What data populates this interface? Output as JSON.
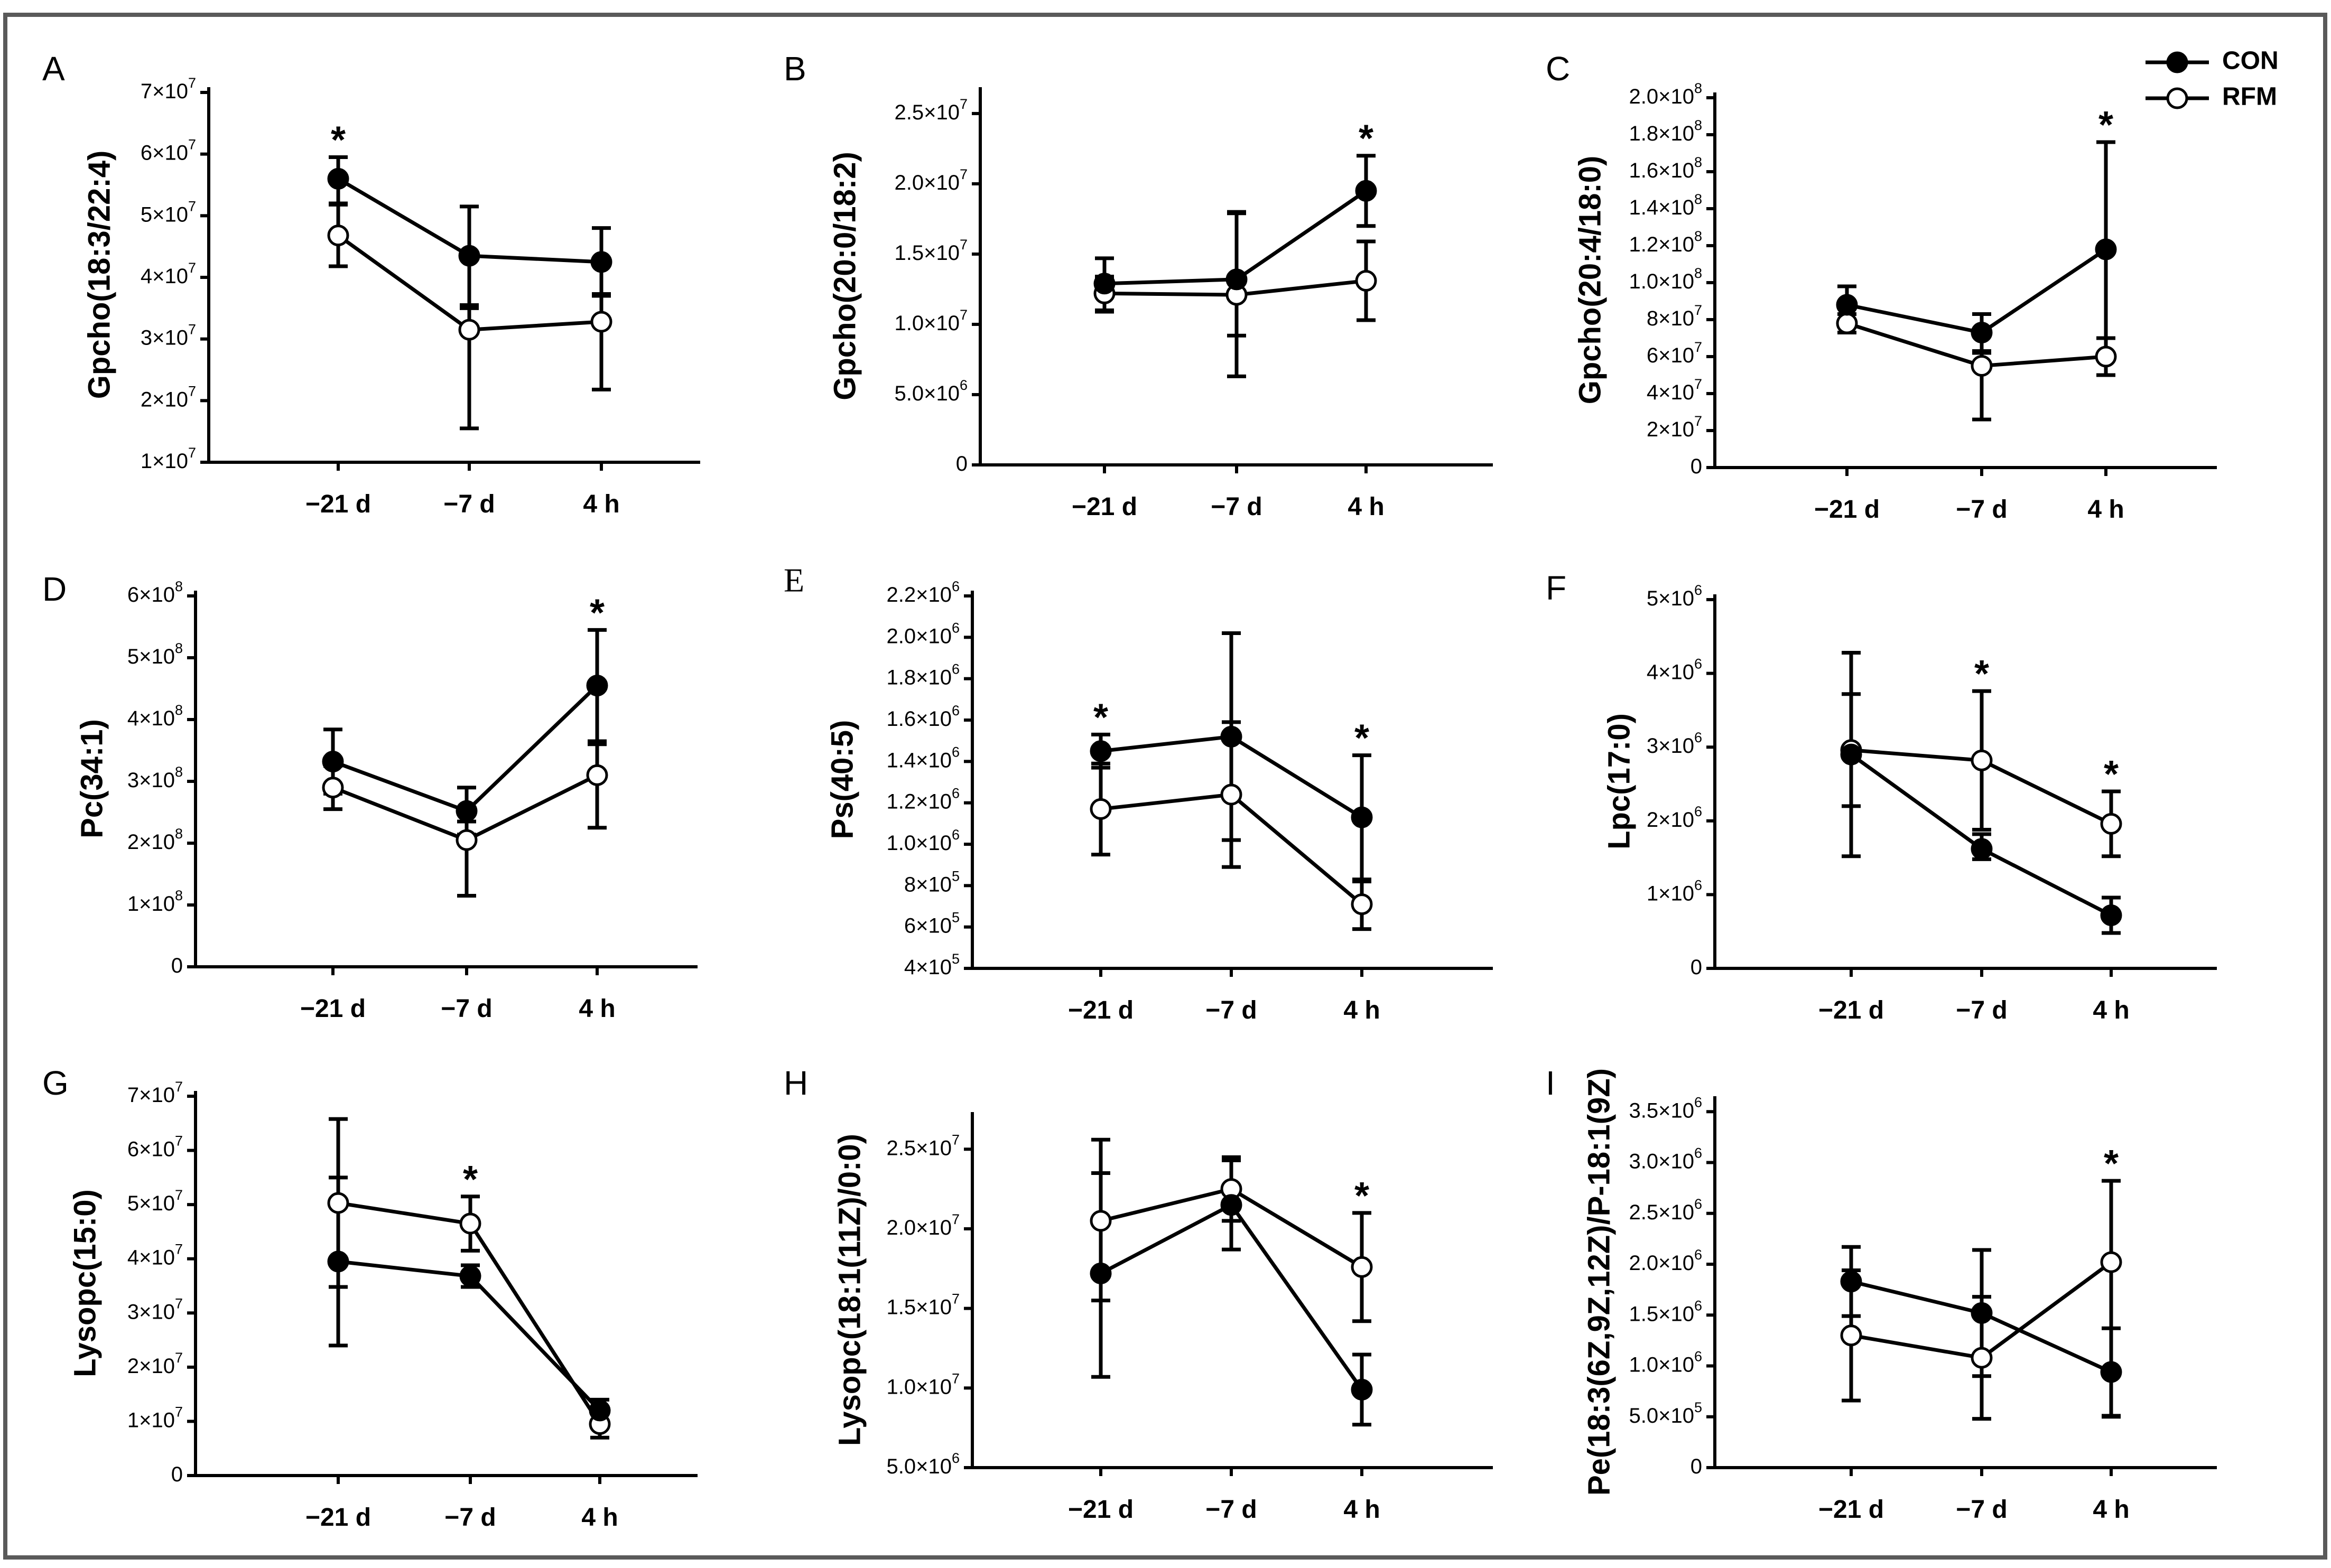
{
  "legend": {
    "entries": [
      {
        "name": "CON",
        "marker": "filled"
      },
      {
        "name": "RFM",
        "marker": "open"
      }
    ]
  },
  "chart_data": [
    {
      "panel": "A",
      "type": "line",
      "ylabel": "Gpcho(18:3/22:4)",
      "x": [
        "−21 d",
        "−7 d",
        "4 h"
      ],
      "ylim": [
        10000000.0,
        70000000.0
      ],
      "yticks": [
        10000000.0,
        20000000.0,
        30000000.0,
        40000000.0,
        50000000.0,
        60000000.0,
        70000000.0
      ],
      "yticklabels": [
        [
          "1×10",
          "7"
        ],
        [
          "2×10",
          "7"
        ],
        [
          "3×10",
          "7"
        ],
        [
          "4×10",
          "7"
        ],
        [
          "5×10",
          "7"
        ],
        [
          "6×10",
          "7"
        ],
        [
          "7×10",
          "7"
        ]
      ],
      "series": [
        {
          "name": "CON",
          "values": [
            56000000.0,
            43500000.0,
            42500000.0
          ],
          "err_up": [
            3500000.0,
            8000000.0,
            5500000.0
          ],
          "err_down": [
            4000000.0,
            8500000.0,
            5500000.0
          ]
        },
        {
          "name": "RFM",
          "values": [
            46800000.0,
            31500000.0,
            32800000.0
          ],
          "err_up": [
            5000000.0,
            4000000.0,
            4500000.0
          ],
          "err_down": [
            5000000.0,
            16000000.0,
            11000000.0
          ]
        }
      ],
      "significant": [
        0
      ]
    },
    {
      "panel": "B",
      "type": "line",
      "ylabel": "Gpcho(20:0/18:2)",
      "x": [
        "−21 d",
        "−7 d",
        "4 h"
      ],
      "ylim": [
        0,
        26500000.0
      ],
      "yticks": [
        0,
        5000000.0,
        10000000.0,
        15000000.0,
        20000000.0,
        25000000.0
      ],
      "yticklabels": [
        [
          "0",
          ""
        ],
        [
          "5.0×10",
          "6"
        ],
        [
          "1.0×10",
          "7"
        ],
        [
          "1.5×10",
          "7"
        ],
        [
          "2.0×10",
          "7"
        ],
        [
          "2.5×10",
          "7"
        ]
      ],
      "series": [
        {
          "name": "CON",
          "values": [
            12900000.0,
            13200000.0,
            19500000.0
          ],
          "err_up": [
            1800000.0,
            4800000.0,
            2500000.0
          ],
          "err_down": [
            2000000.0,
            4000000.0,
            2500000.0
          ]
        },
        {
          "name": "RFM",
          "values": [
            12200000.0,
            12100000.0,
            13100000.0
          ],
          "err_up": [
            1200000.0,
            5800000.0,
            2800000.0
          ],
          "err_down": [
            1200000.0,
            5800000.0,
            2800000.0
          ]
        }
      ],
      "significant": [
        2
      ]
    },
    {
      "panel": "C",
      "type": "line",
      "ylabel": "Gpcho(20:4/18:0)",
      "x": [
        "−21 d",
        "−7 d",
        "4 h"
      ],
      "ylim": [
        0,
        200000000.0
      ],
      "yticks": [
        0,
        20000000.0,
        40000000.0,
        60000000.0,
        80000000.0,
        100000000.0,
        120000000.0,
        140000000.0,
        160000000.0,
        180000000.0,
        200000000.0
      ],
      "yticklabels": [
        [
          "0",
          ""
        ],
        [
          "2×10",
          "7"
        ],
        [
          "4×10",
          "7"
        ],
        [
          "6×10",
          "7"
        ],
        [
          "8×10",
          "7"
        ],
        [
          "1.0×10",
          "8"
        ],
        [
          "1.2×10",
          "8"
        ],
        [
          "1.4×10",
          "8"
        ],
        [
          "1.6×10",
          "8"
        ],
        [
          "1.8×10",
          "8"
        ],
        [
          "2.0×10",
          "8"
        ]
      ],
      "series": [
        {
          "name": "CON",
          "values": [
            88000000.0,
            73000000.0,
            118000000.0
          ],
          "err_up": [
            10000000.0,
            10000000.0,
            58000000.0
          ],
          "err_down": [
            10000000.0,
            10000000.0,
            58000000.0
          ]
        },
        {
          "name": "RFM",
          "values": [
            78000000.0,
            55000000.0,
            60000000.0
          ],
          "err_up": [
            5000000.0,
            7000000.0,
            10000000.0
          ],
          "err_down": [
            5000000.0,
            29000000.0,
            10000000.0
          ]
        }
      ],
      "significant": [
        2
      ]
    },
    {
      "panel": "D",
      "type": "line",
      "ylabel": "Pc(34:1)",
      "x": [
        "−21 d",
        "−7 d",
        "4 h"
      ],
      "ylim": [
        0,
        600000000.0
      ],
      "yticks": [
        0,
        100000000.0,
        200000000.0,
        300000000.0,
        400000000.0,
        500000000.0,
        600000000.0
      ],
      "yticklabels": [
        [
          "0",
          ""
        ],
        [
          "1×10",
          "8"
        ],
        [
          "2×10",
          "8"
        ],
        [
          "3×10",
          "8"
        ],
        [
          "4×10",
          "8"
        ],
        [
          "5×10",
          "8"
        ],
        [
          "6×10",
          "8"
        ]
      ],
      "series": [
        {
          "name": "CON",
          "values": [
            332000000.0,
            252000000.0,
            455000000.0
          ],
          "err_up": [
            52000000.0,
            38000000.0,
            90000000.0
          ],
          "err_down": [
            52000000.0,
            38000000.0,
            90000000.0
          ]
        },
        {
          "name": "RFM",
          "values": [
            290000000.0,
            205000000.0,
            310000000.0
          ],
          "err_up": [
            35000000.0,
            30000000.0,
            50000000.0
          ],
          "err_down": [
            35000000.0,
            90000000.0,
            85000000.0
          ]
        }
      ],
      "significant": [
        2
      ]
    },
    {
      "panel": "E",
      "type": "line",
      "ylabel": "Ps(40:5)",
      "x": [
        "−21 d",
        "−7 d",
        "4 h"
      ],
      "ylim": [
        400000.0,
        2200000.0
      ],
      "yticks": [
        400000.0,
        600000.0,
        800000.0,
        1000000.0,
        1200000.0,
        1400000.0,
        1600000.0,
        1800000.0,
        2000000.0,
        2200000.0
      ],
      "yticklabels": [
        [
          "4×10",
          "5"
        ],
        [
          "6×10",
          "5"
        ],
        [
          "8×10",
          "5"
        ],
        [
          "1.0×10",
          "6"
        ],
        [
          "1.2×10",
          "6"
        ],
        [
          "1.4×10",
          "6"
        ],
        [
          "1.6×10",
          "6"
        ],
        [
          "1.8×10",
          "6"
        ],
        [
          "2.0×10",
          "6"
        ],
        [
          "2.2×10",
          "6"
        ]
      ],
      "series": [
        {
          "name": "CON",
          "values": [
            1450000.0,
            1520000.0,
            1130000.0
          ],
          "err_up": [
            80000.0,
            500000.0,
            300000.0
          ],
          "err_down": [
            80000.0,
            500000.0,
            300000.0
          ]
        },
        {
          "name": "RFM",
          "values": [
            1170000.0,
            1240000.0,
            710000.0
          ],
          "err_up": [
            220000.0,
            350000.0,
            110000.0
          ],
          "err_down": [
            220000.0,
            350000.0,
            120000.0
          ]
        }
      ],
      "significant": [
        0,
        2
      ]
    },
    {
      "panel": "F",
      "type": "line",
      "ylabel": "Lpc(17:0)",
      "x": [
        "−21 d",
        "−7 d",
        "4 h"
      ],
      "ylim": [
        0,
        5000000.0
      ],
      "yticks": [
        0,
        1000000.0,
        2000000.0,
        3000000.0,
        4000000.0,
        5000000.0
      ],
      "yticklabels": [
        [
          "0",
          ""
        ],
        [
          "1×10",
          "6"
        ],
        [
          "2×10",
          "6"
        ],
        [
          "3×10",
          "6"
        ],
        [
          "4×10",
          "6"
        ],
        [
          "5×10",
          "6"
        ]
      ],
      "series": [
        {
          "name": "CON",
          "values": [
            2900000.0,
            1620000.0,
            720000.0
          ],
          "err_up": [
            1380000.0,
            200000.0,
            240000.0
          ],
          "err_down": [
            1380000.0,
            140000.0,
            240000.0
          ]
        },
        {
          "name": "RFM",
          "values": [
            2960000.0,
            2820000.0,
            1960000.0
          ],
          "err_up": [
            760000.0,
            940000.0,
            440000.0
          ],
          "err_down": [
            760000.0,
            940000.0,
            440000.0
          ]
        }
      ],
      "significant": [
        1,
        2
      ]
    },
    {
      "panel": "G",
      "type": "line",
      "ylabel": "Lysopc(15:0)",
      "x": [
        "−21 d",
        "−7 d",
        "4 h"
      ],
      "ylim": [
        0,
        70000000.0
      ],
      "yticks": [
        0,
        10000000.0,
        20000000.0,
        30000000.0,
        40000000.0,
        50000000.0,
        60000000.0,
        70000000.0
      ],
      "yticklabels": [
        [
          "0",
          ""
        ],
        [
          "1×10",
          "7"
        ],
        [
          "2×10",
          "7"
        ],
        [
          "3×10",
          "7"
        ],
        [
          "4×10",
          "7"
        ],
        [
          "5×10",
          "7"
        ],
        [
          "6×10",
          "7"
        ],
        [
          "7×10",
          "7"
        ]
      ],
      "series": [
        {
          "name": "CON",
          "values": [
            39500000.0,
            36800000.0,
            12000000.0
          ],
          "err_up": [
            15500000.0,
            2000000.0,
            2000000.0
          ],
          "err_down": [
            15500000.0,
            2000000.0,
            2000000.0
          ]
        },
        {
          "name": "RFM",
          "values": [
            50300000.0,
            46500000.0,
            9500000.0
          ],
          "err_up": [
            15500000.0,
            5000000.0,
            2500000.0
          ],
          "err_down": [
            15500000.0,
            5000000.0,
            2500000.0
          ]
        }
      ],
      "significant": [
        1
      ]
    },
    {
      "panel": "H",
      "type": "line",
      "ylabel": "Lysopc(18:1(11Z)/0:0)",
      "x": [
        "−21 d",
        "−7 d",
        "4 h"
      ],
      "ylim": [
        5000000.0,
        27000000.0
      ],
      "yticks": [
        5000000.0,
        10000000.0,
        15000000.0,
        20000000.0,
        25000000.0
      ],
      "yticklabels": [
        [
          "5.0×10",
          "6"
        ],
        [
          "1.0×10",
          "7"
        ],
        [
          "1.5×10",
          "7"
        ],
        [
          "2.0×10",
          "7"
        ],
        [
          "2.5×10",
          "7"
        ]
      ],
      "series": [
        {
          "name": "CON",
          "values": [
            17200000.0,
            21500000.0,
            9900000.0
          ],
          "err_up": [
            8400000.0,
            2800000.0,
            2200000.0
          ],
          "err_down": [
            6500000.0,
            2800000.0,
            2200000.0
          ]
        },
        {
          "name": "RFM",
          "values": [
            20500000.0,
            22500000.0,
            17600000.0
          ],
          "err_up": [
            3000000.0,
            2000000.0,
            3400000.0
          ],
          "err_down": [
            5000000.0,
            2000000.0,
            3400000.0
          ]
        }
      ],
      "significant": [
        2
      ]
    },
    {
      "panel": "I",
      "type": "line",
      "ylabel": "Pe(18:3(6Z,9Z,12Z)/P-18:1(9Z)",
      "x": [
        "−21 d",
        "−7 d",
        "4 h"
      ],
      "ylim": [
        0,
        3600000.0
      ],
      "yticks": [
        0,
        500000.0,
        1000000.0,
        1500000.0,
        2000000.0,
        2500000.0,
        3000000.0,
        3500000.0
      ],
      "yticklabels": [
        [
          "0",
          ""
        ],
        [
          "5.0×10",
          "5"
        ],
        [
          "1.0×10",
          "6"
        ],
        [
          "1.5×10",
          "6"
        ],
        [
          "2.0×10",
          "6"
        ],
        [
          "2.5×10",
          "6"
        ],
        [
          "3.0×10",
          "6"
        ],
        [
          "3.5×10",
          "6"
        ]
      ],
      "series": [
        {
          "name": "CON",
          "values": [
            1830000.0,
            1520000.0,
            940000.0
          ],
          "err_up": [
            340000.0,
            620000.0,
            430000.0
          ],
          "err_down": [
            340000.0,
            620000.0,
            430000.0
          ]
        },
        {
          "name": "RFM",
          "values": [
            1300000.0,
            1080000.0,
            2020000.0
          ],
          "err_up": [
            640000.0,
            600000.0,
            800000.0
          ],
          "err_down": [
            640000.0,
            600000.0,
            1520000.0
          ]
        }
      ],
      "significant": [
        2
      ]
    }
  ]
}
